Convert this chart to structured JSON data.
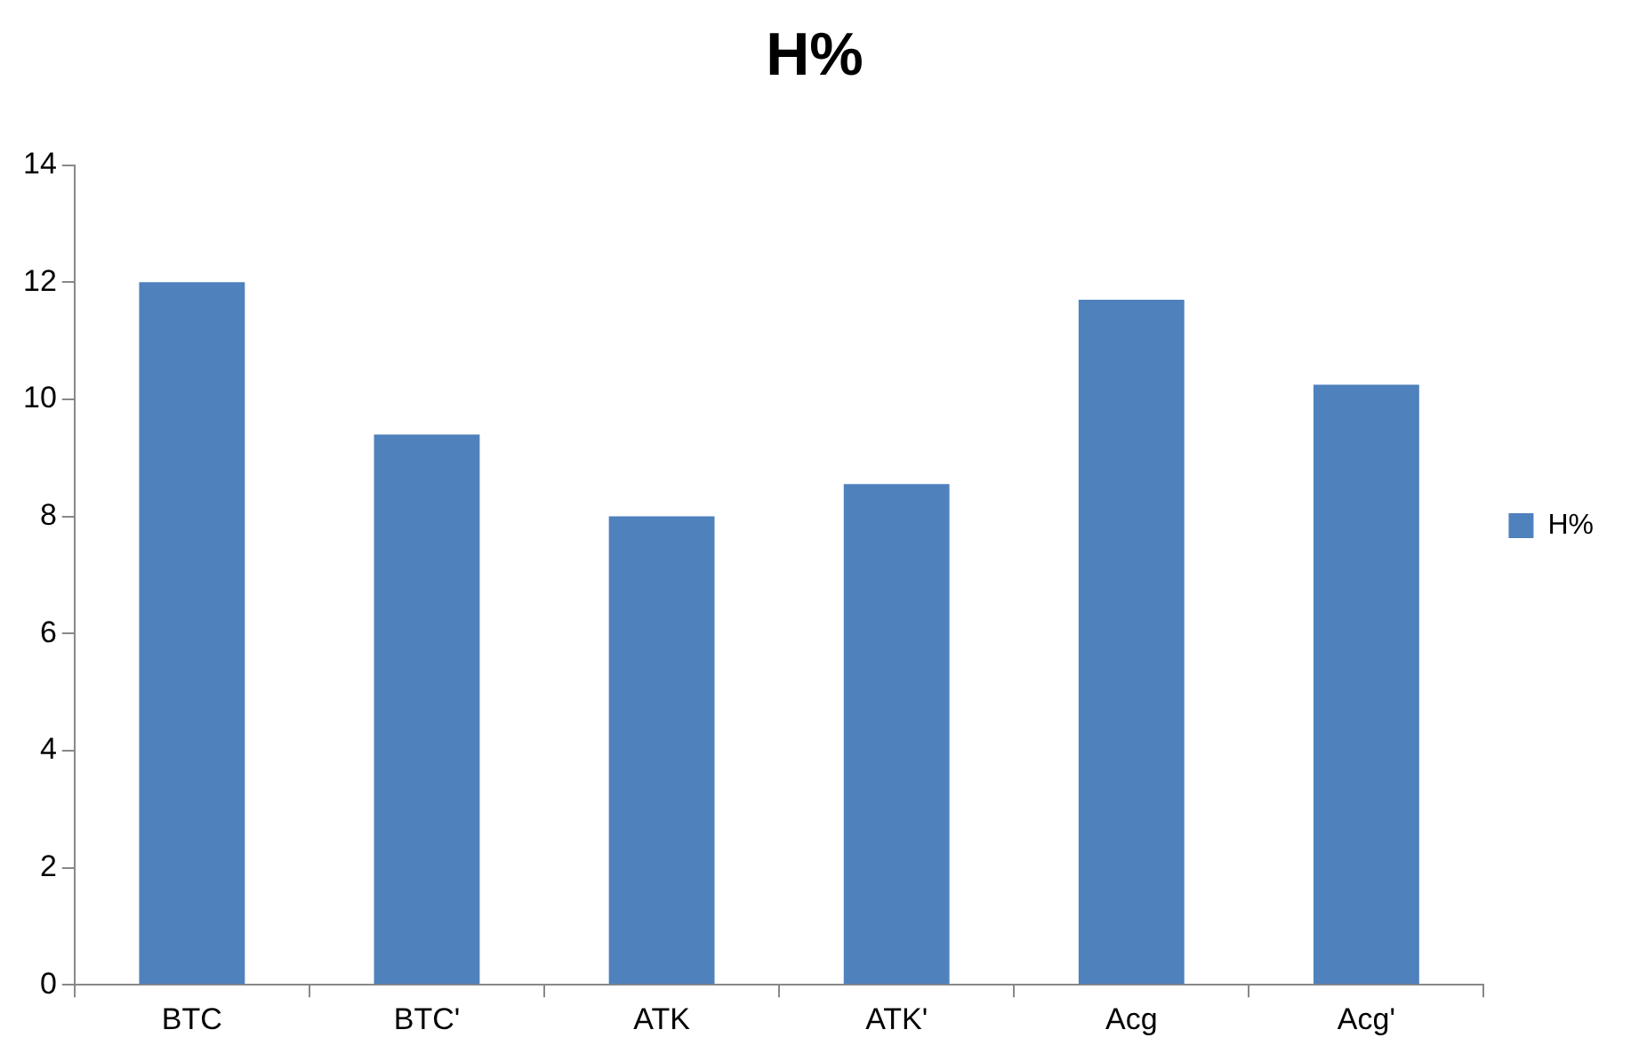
{
  "chart_data": {
    "type": "bar",
    "title": "H%",
    "categories": [
      "BTC",
      "BTC'",
      "ATK",
      "ATK'",
      "Acg",
      "Acg'"
    ],
    "series": [
      {
        "name": "H%",
        "color": "#4f81bd",
        "values": [
          12.0,
          9.4,
          8.0,
          8.55,
          11.7,
          10.25
        ]
      }
    ],
    "ylim": [
      0,
      14
    ],
    "yticks": [
      0,
      2,
      4,
      6,
      8,
      10,
      12,
      14
    ],
    "grid": false,
    "legend": "right"
  }
}
